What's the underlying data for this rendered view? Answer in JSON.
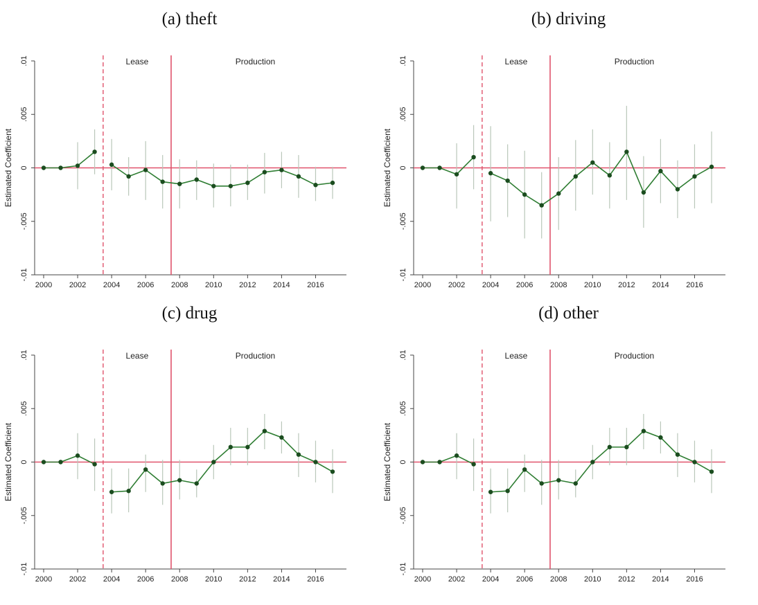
{
  "chart_data": [
    {
      "type": "line",
      "title": "(a) theft",
      "ylabel": "Estimated Coefficient",
      "ylim": [
        -0.01,
        0.01
      ],
      "yticks": [
        ".01",
        ".005",
        "0",
        "-.005",
        "-.01"
      ],
      "xlim": [
        2000,
        2017
      ],
      "xticks": [
        "2000",
        "2002",
        "2004",
        "2006",
        "2008",
        "2010",
        "2012",
        "2014",
        "2016"
      ],
      "annotations": [
        "Lease",
        "Production"
      ],
      "lease_line_x": 2003.5,
      "production_line_x": 2007.5,
      "x": [
        2000,
        2001,
        2002,
        2003,
        2004,
        2005,
        2006,
        2007,
        2008,
        2009,
        2010,
        2011,
        2012,
        2013,
        2014,
        2015,
        2016,
        2017
      ],
      "y": [
        0,
        0,
        0.0002,
        0.0015,
        0.0003,
        -0.0008,
        -0.0002,
        -0.0013,
        -0.0015,
        -0.0011,
        -0.0017,
        -0.0017,
        -0.0014,
        -0.0004,
        -0.0002,
        -0.0008,
        -0.0016,
        -0.0014
      ],
      "ci_low": [
        0,
        0,
        -0.002,
        -0.0006,
        -0.0021,
        -0.0026,
        -0.003,
        -0.0038,
        -0.0038,
        -0.003,
        -0.0037,
        -0.0036,
        -0.003,
        -0.0024,
        -0.0019,
        -0.0028,
        -0.0031,
        -0.0029
      ],
      "ci_high": [
        0,
        0,
        0.0024,
        0.0036,
        0.0027,
        0.001,
        0.0025,
        0.0012,
        0.0008,
        0.0007,
        0.0004,
        0.0003,
        0.0003,
        0.0014,
        0.0015,
        0.0012,
        0.0001,
        0.0001
      ]
    },
    {
      "type": "line",
      "title": "(b) driving",
      "ylabel": "Estimated Coefficient",
      "ylim": [
        -0.01,
        0.01
      ],
      "yticks": [
        ".01",
        ".005",
        "0",
        "-.005",
        "-.01"
      ],
      "xlim": [
        2000,
        2017
      ],
      "xticks": [
        "2000",
        "2002",
        "2004",
        "2006",
        "2008",
        "2010",
        "2012",
        "2014",
        "2016"
      ],
      "annotations": [
        "Lease",
        "Production"
      ],
      "lease_line_x": 2003.5,
      "production_line_x": 2007.5,
      "x": [
        2000,
        2001,
        2002,
        2003,
        2004,
        2005,
        2006,
        2007,
        2008,
        2009,
        2010,
        2011,
        2012,
        2013,
        2014,
        2015,
        2016,
        2017
      ],
      "y": [
        0,
        0,
        -0.0006,
        0.001,
        -0.0005,
        -0.0012,
        -0.0025,
        -0.0035,
        -0.0024,
        -0.0008,
        0.0005,
        -0.0007,
        0.0015,
        -0.0023,
        -0.0003,
        -0.002,
        -0.0008,
        0.0001
      ],
      "ci_low": [
        0,
        0,
        -0.0038,
        -0.002,
        -0.005,
        -0.0046,
        -0.0066,
        -0.0066,
        -0.0058,
        -0.004,
        -0.0025,
        -0.0038,
        -0.003,
        -0.0056,
        -0.0033,
        -0.0047,
        -0.0038,
        -0.0033
      ],
      "ci_high": [
        0,
        0,
        0.0023,
        0.004,
        0.0039,
        0.0022,
        0.0016,
        -0.0004,
        0.001,
        0.0026,
        0.0036,
        0.0024,
        0.0058,
        0.0011,
        0.0027,
        0.0007,
        0.0022,
        0.0034
      ]
    },
    {
      "type": "line",
      "title": "(c) drug",
      "ylabel": "Estimated Coefficient",
      "ylim": [
        -0.01,
        0.01
      ],
      "yticks": [
        ".01",
        ".005",
        "0",
        "-.005",
        "-.01"
      ],
      "xlim": [
        2000,
        2017
      ],
      "xticks": [
        "2000",
        "2002",
        "2004",
        "2006",
        "2008",
        "2010",
        "2012",
        "2014",
        "2016"
      ],
      "annotations": [
        "Lease",
        "Production"
      ],
      "lease_line_x": 2003.5,
      "production_line_x": 2007.5,
      "x": [
        2000,
        2001,
        2002,
        2003,
        2004,
        2005,
        2006,
        2007,
        2008,
        2009,
        2010,
        2011,
        2012,
        2013,
        2014,
        2015,
        2016,
        2017
      ],
      "y": [
        0,
        0,
        0.0006,
        -0.0002,
        -0.0028,
        -0.0027,
        -0.0007,
        -0.002,
        -0.0017,
        -0.002,
        0,
        0.0014,
        0.0014,
        0.0029,
        0.0023,
        0.0007,
        0,
        -0.0009
      ],
      "ci_low": [
        0,
        0,
        -0.0016,
        -0.0027,
        -0.0048,
        -0.0047,
        -0.0028,
        -0.004,
        -0.0035,
        -0.0033,
        -0.0016,
        -0.0003,
        -0.0003,
        0.0012,
        0.0008,
        -0.0014,
        -0.0019,
        -0.0029
      ],
      "ci_high": [
        0,
        0,
        0.0027,
        0.0022,
        -0.0006,
        -0.0006,
        0.0007,
        0.0002,
        0.0002,
        -0.0007,
        0.0016,
        0.0032,
        0.0032,
        0.0045,
        0.0038,
        0.0027,
        0.002,
        0.0012
      ]
    },
    {
      "type": "line",
      "title": "(d) other",
      "ylabel": "Estimated Coefficient",
      "ylim": [
        -0.01,
        0.01
      ],
      "yticks": [
        ".01",
        ".005",
        "0",
        "-.005",
        "-.01"
      ],
      "xlim": [
        2000,
        2017
      ],
      "xticks": [
        "2000",
        "2002",
        "2004",
        "2006",
        "2008",
        "2010",
        "2012",
        "2014",
        "2016"
      ],
      "annotations": [
        "Lease",
        "Production"
      ],
      "lease_line_x": 2003.5,
      "production_line_x": 2007.5,
      "x": [
        2000,
        2001,
        2002,
        2003,
        2004,
        2005,
        2006,
        2007,
        2008,
        2009,
        2010,
        2011,
        2012,
        2013,
        2014,
        2015,
        2016,
        2017
      ],
      "y": [
        0,
        0,
        0.0006,
        -0.0002,
        -0.0028,
        -0.0027,
        -0.0007,
        -0.002,
        -0.0017,
        -0.002,
        0,
        0.0014,
        0.0014,
        0.0029,
        0.0023,
        0.0007,
        0,
        -0.0009
      ],
      "ci_low": [
        0,
        0,
        -0.0016,
        -0.0027,
        -0.0048,
        -0.0047,
        -0.0028,
        -0.004,
        -0.0035,
        -0.0033,
        -0.0016,
        -0.0003,
        -0.0003,
        0.0012,
        0.0008,
        -0.0014,
        -0.0019,
        -0.0029
      ],
      "ci_high": [
        0,
        0,
        0.0027,
        0.0022,
        -0.0006,
        -0.0006,
        0.0007,
        0.0002,
        0.0002,
        -0.0007,
        0.0016,
        0.0032,
        0.0032,
        0.0045,
        0.0038,
        0.0027,
        0.002,
        0.0012
      ]
    }
  ],
  "colors": {
    "series_line": "#2e7d32",
    "series_marker": "#1b4d1f",
    "ci_bar": "#b9c7b9",
    "reference_line": "#e0526b",
    "axis": "#444444"
  }
}
